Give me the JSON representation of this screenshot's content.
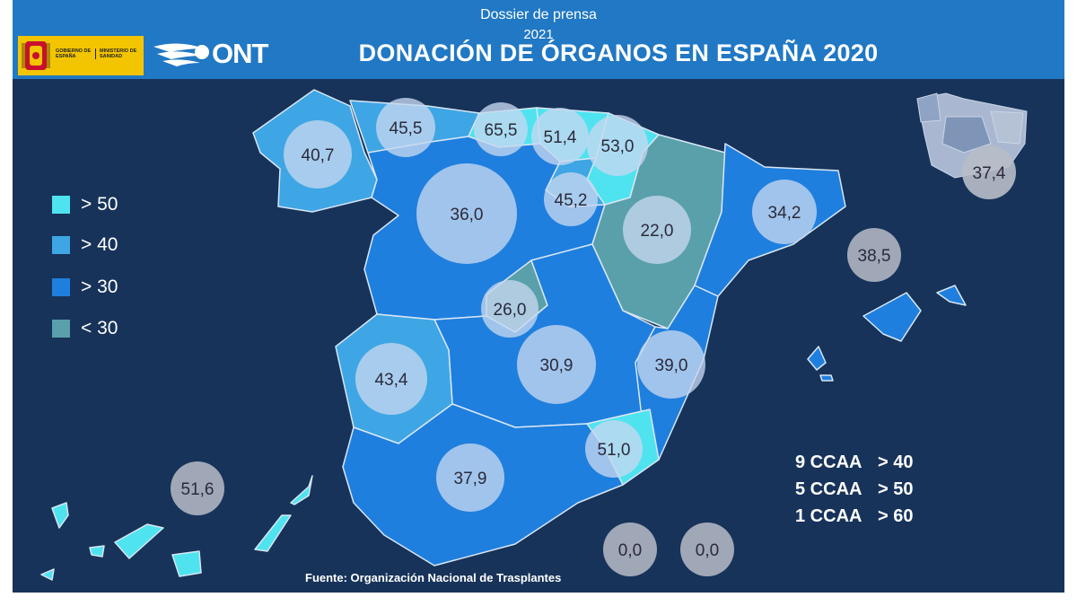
{
  "header": {
    "dossier_line1": "Dossier de prensa",
    "dossier_line2": "2021",
    "title": "DONACIÓN DE ÓRGANOS EN ESPAÑA 2020",
    "gov_logo_text1": "GOBIERNO DE ESPAÑA",
    "gov_logo_text2": "MINISTERIO DE SANIDAD",
    "org_logo": "ONT"
  },
  "legend": [
    {
      "label": "> 50",
      "color": "#4fe3f0"
    },
    {
      "label": "> 40",
      "color": "#3ea6e4"
    },
    {
      "label": "> 30",
      "color": "#1f7fde"
    },
    {
      "label": "< 30",
      "color": "#59a0aa"
    }
  ],
  "summary": [
    {
      "count": "9 CCAA",
      "threshold": "> 40"
    },
    {
      "count": "5 CCAA",
      "threshold": "> 50"
    },
    {
      "count": "1 CCAA",
      "threshold": "> 60"
    }
  ],
  "source": "Fuente: Organización Nacional de Trasplantes",
  "regions": [
    {
      "name": "Galicia",
      "value": "40,7",
      "category": "> 40"
    },
    {
      "name": "Asturias",
      "value": "45,5",
      "category": "> 40"
    },
    {
      "name": "Cantabria",
      "value": "65,5",
      "category": "> 50"
    },
    {
      "name": "País Vasco",
      "value": "51,4",
      "category": "> 50"
    },
    {
      "name": "Navarra",
      "value": "53,0",
      "category": "> 50"
    },
    {
      "name": "La Rioja",
      "value": "45,2",
      "category": "> 40"
    },
    {
      "name": "Castilla y León",
      "value": "36,0",
      "category": "> 30"
    },
    {
      "name": "Aragón",
      "value": "22,0",
      "category": "< 30"
    },
    {
      "name": "Cataluña",
      "value": "34,2",
      "category": "> 30"
    },
    {
      "name": "Madrid",
      "value": "26,0",
      "category": "< 30"
    },
    {
      "name": "Castilla-La Mancha",
      "value": "30,9",
      "category": "> 30"
    },
    {
      "name": "Comunidad Valenciana",
      "value": "39,0",
      "category": "> 30"
    },
    {
      "name": "Extremadura",
      "value": "43,4",
      "category": "> 40"
    },
    {
      "name": "Andalucía",
      "value": "37,9",
      "category": "> 30"
    },
    {
      "name": "Murcia",
      "value": "51,0",
      "category": "> 50"
    },
    {
      "name": "Baleares",
      "value": "38,5",
      "category": "> 30"
    },
    {
      "name": "Canarias",
      "value": "51,6",
      "category": "> 50"
    },
    {
      "name": "Ceuta",
      "value": "0,0",
      "category": ""
    },
    {
      "name": "Melilla",
      "value": "0,0",
      "category": ""
    },
    {
      "name": "España",
      "value": "37,4",
      "category": ""
    }
  ],
  "colors": {
    "background": "#17335a",
    "header": "#2178c4",
    "bubble": "#c7d7ef",
    "bubble_grey": "#b8bcc8"
  }
}
